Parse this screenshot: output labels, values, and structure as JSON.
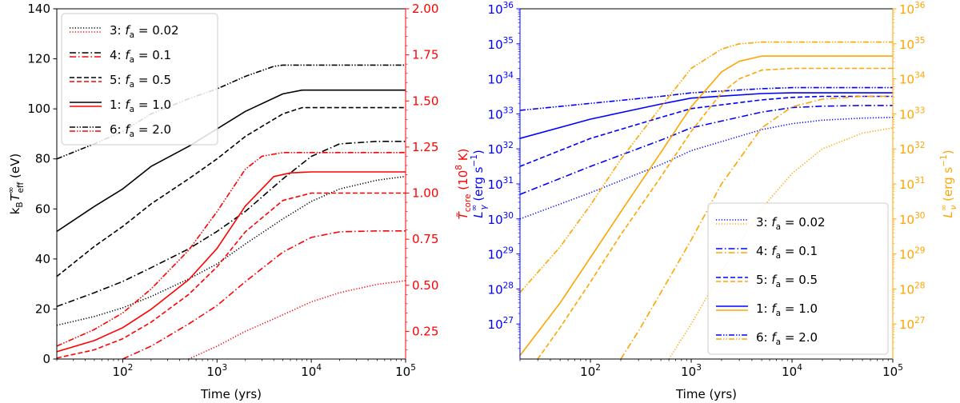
{
  "chart_data": [
    {
      "type": "line",
      "x_scale": "log",
      "xlim": [
        20,
        100000
      ],
      "xlabel": "Time (yrs)",
      "x_ticks": [
        100,
        1000,
        10000,
        100000
      ],
      "x_tick_labels": [
        "10",
        "10",
        "10",
        "10"
      ],
      "x_tick_exponents": [
        "2",
        "3",
        "4",
        "5"
      ],
      "ylabel_left": {
        "base": "k",
        "base_sub": "B",
        "main": "T",
        "main_sup": "∞",
        "main_sub": "eff",
        "unit": " (eV)"
      },
      "ylim_left": [
        0,
        140
      ],
      "y_ticks_left": [
        0,
        20,
        40,
        60,
        80,
        100,
        120,
        140
      ],
      "ylabel_right": {
        "main": "T̃",
        "main_sub": "core",
        "unit": " (10",
        "unit_sup": "8",
        "unit_end": " K)"
      },
      "ylim_right": [
        0.1,
        2.0
      ],
      "y_ticks_right": [
        0.25,
        0.5,
        0.75,
        1.0,
        1.25,
        1.5,
        1.75,
        2.0
      ],
      "y_tick_labels_right": [
        "0.25",
        "0.50",
        "0.75",
        "1.00",
        "1.25",
        "1.50",
        "1.75",
        "2.00"
      ],
      "colors": {
        "left_axis": "#000000",
        "right_axis": "#ff0000"
      },
      "legend": {
        "position": "top-left",
        "entries": [
          {
            "id": "3",
            "label": "3: ",
            "f_symbol": "f",
            "f_sub": "a",
            "value": " = 0.02",
            "dash": "dotted"
          },
          {
            "id": "4",
            "label": "4: ",
            "f_symbol": "f",
            "f_sub": "a",
            "value": " = 0.1",
            "dash": "dashdot"
          },
          {
            "id": "5",
            "label": "5: ",
            "f_symbol": "f",
            "f_sub": "a",
            "value": " = 0.5",
            "dash": "dashed"
          },
          {
            "id": "1",
            "label": "1: ",
            "f_symbol": "f",
            "f_sub": "a",
            "value": " = 1.0",
            "dash": "solid"
          },
          {
            "id": "6",
            "label": "6: ",
            "f_symbol": "f",
            "f_sub": "a",
            "value": " = 2.0",
            "dash": "dashdotdot"
          }
        ]
      },
      "series": [
        {
          "id": "3",
          "axis": "left",
          "color": "#000000",
          "dash": "dotted",
          "x": [
            20,
            50,
            100,
            200,
            500,
            1000,
            2000,
            5000,
            10000,
            20000,
            50000,
            100000
          ],
          "y": [
            13.5,
            17,
            20.5,
            25,
            32,
            38,
            46,
            56,
            63,
            68,
            71.5,
            73
          ]
        },
        {
          "id": "4",
          "axis": "left",
          "color": "#000000",
          "dash": "dashdot",
          "x": [
            20,
            50,
            100,
            200,
            500,
            1000,
            2000,
            5000,
            10000,
            20000,
            50000,
            100000
          ],
          "y": [
            21,
            26.5,
            31,
            36.5,
            44,
            51,
            59,
            72,
            81,
            86,
            87,
            87
          ]
        },
        {
          "id": "5",
          "axis": "left",
          "color": "#000000",
          "dash": "dashed",
          "x": [
            20,
            50,
            100,
            200,
            500,
            1000,
            2000,
            5000,
            8000,
            20000,
            100000
          ],
          "y": [
            33,
            45,
            53,
            62,
            72,
            80,
            89,
            98,
            100.5,
            100.5,
            100.5
          ]
        },
        {
          "id": "1",
          "axis": "left",
          "color": "#000000",
          "dash": "solid",
          "x": [
            20,
            50,
            100,
            200,
            500,
            1000,
            2000,
            5000,
            8000,
            20000,
            100000
          ],
          "y": [
            51,
            61,
            68,
            77,
            85,
            92,
            99,
            106,
            107.5,
            107.5,
            107.5
          ]
        },
        {
          "id": "6",
          "axis": "left",
          "color": "#000000",
          "dash": "dashdotdot",
          "x": [
            20,
            50,
            100,
            200,
            500,
            1000,
            2000,
            4000,
            5000,
            20000,
            100000
          ],
          "y": [
            80,
            86,
            91,
            98,
            104,
            108,
            113,
            117,
            117.5,
            117.5,
            117.5
          ]
        },
        {
          "id": "3",
          "axis": "right",
          "color": "#ff0000",
          "dash": "dotted",
          "x": [
            500,
            1000,
            2000,
            5000,
            10000,
            20000,
            50000,
            100000
          ],
          "y": [
            0.1,
            0.17,
            0.25,
            0.34,
            0.41,
            0.46,
            0.505,
            0.525
          ]
        },
        {
          "id": "4",
          "axis": "right",
          "color": "#ff0000",
          "dash": "dashdot",
          "x": [
            100,
            200,
            500,
            1000,
            2000,
            5000,
            10000,
            20000,
            50000,
            100000
          ],
          "y": [
            0.1,
            0.17,
            0.29,
            0.39,
            0.52,
            0.68,
            0.76,
            0.79,
            0.795,
            0.795
          ]
        },
        {
          "id": "5",
          "axis": "right",
          "color": "#ff0000",
          "dash": "dashed",
          "x": [
            20,
            50,
            100,
            200,
            500,
            1000,
            2000,
            5000,
            10000,
            20000,
            100000
          ],
          "y": [
            0.105,
            0.15,
            0.21,
            0.3,
            0.45,
            0.6,
            0.79,
            0.96,
            1.0,
            1.0,
            1.0
          ]
        },
        {
          "id": "1",
          "axis": "right",
          "color": "#ff0000",
          "dash": "solid",
          "x": [
            20,
            50,
            100,
            200,
            500,
            1000,
            2000,
            4000,
            6000,
            10000,
            100000
          ],
          "y": [
            0.14,
            0.2,
            0.27,
            0.37,
            0.53,
            0.7,
            0.93,
            1.09,
            1.11,
            1.115,
            1.115
          ]
        },
        {
          "id": "6",
          "axis": "right",
          "color": "#ff0000",
          "dash": "dashdotdot",
          "x": [
            20,
            50,
            100,
            200,
            500,
            1000,
            2000,
            3000,
            5000,
            100000
          ],
          "y": [
            0.17,
            0.26,
            0.35,
            0.48,
            0.69,
            0.9,
            1.13,
            1.2,
            1.22,
            1.22
          ]
        }
      ]
    },
    {
      "type": "line",
      "x_scale": "log",
      "xlim": [
        20,
        100000
      ],
      "xlabel": "Time (yrs)",
      "x_ticks": [
        100,
        1000,
        10000,
        100000
      ],
      "x_tick_labels": [
        "10",
        "10",
        "10",
        "10"
      ],
      "x_tick_exponents": [
        "2",
        "3",
        "4",
        "5"
      ],
      "y_scale": "log",
      "ylabel_left": {
        "main": "L",
        "main_sup": "∞",
        "main_sub": "γ",
        "unit": " (erg s",
        "unit_sup": "−1",
        "unit_end": ")"
      },
      "ylim_left_exp": [
        26,
        36
      ],
      "y_ticks_left_exp": [
        27,
        28,
        29,
        30,
        31,
        32,
        33,
        34,
        35,
        36
      ],
      "ylabel_right": {
        "main": "L",
        "main_sup": "∞",
        "main_sub": "ν",
        "unit": " (erg s",
        "unit_sup": "−1",
        "unit_end": ")"
      },
      "ylim_right_exp": [
        26,
        36
      ],
      "y_ticks_right_exp": [
        27,
        28,
        29,
        30,
        31,
        32,
        33,
        34,
        35,
        36
      ],
      "y_tick_base": "10",
      "colors": {
        "left_axis": "#0000ff",
        "right_axis": "#ffa500"
      },
      "legend": {
        "position": "bottom-right",
        "entries": [
          {
            "id": "3",
            "label": "3: ",
            "f_symbol": "f",
            "f_sub": "a",
            "value": " = 0.02",
            "dash": "dotted"
          },
          {
            "id": "4",
            "label": "4: ",
            "f_symbol": "f",
            "f_sub": "a",
            "value": " = 0.1",
            "dash": "dashdot"
          },
          {
            "id": "5",
            "label": "5: ",
            "f_symbol": "f",
            "f_sub": "a",
            "value": " = 0.5",
            "dash": "dashed"
          },
          {
            "id": "1",
            "label": "1: ",
            "f_symbol": "f",
            "f_sub": "a",
            "value": " = 1.0",
            "dash": "solid"
          },
          {
            "id": "6",
            "label": "6: ",
            "f_symbol": "f",
            "f_sub": "a",
            "value": " = 2.0",
            "dash": "dashdotdot"
          }
        ]
      },
      "series": [
        {
          "id": "3",
          "axis": "left",
          "color": "#0000ff",
          "dash": "dotted",
          "x": [
            20,
            100,
            500,
            1000,
            5000,
            10000,
            20000,
            50000,
            100000
          ],
          "log_y": [
            30.0,
            30.75,
            31.55,
            31.95,
            32.55,
            32.72,
            32.82,
            32.88,
            32.9
          ]
        },
        {
          "id": "4",
          "axis": "left",
          "color": "#0000ff",
          "dash": "dashdot",
          "x": [
            20,
            100,
            500,
            1000,
            5000,
            10000,
            20000,
            50000,
            100000
          ],
          "log_y": [
            30.7,
            31.5,
            32.25,
            32.6,
            33.05,
            33.18,
            33.22,
            33.24,
            33.24
          ]
        },
        {
          "id": "5",
          "axis": "left",
          "color": "#0000ff",
          "dash": "dashed",
          "x": [
            20,
            100,
            500,
            1000,
            5000,
            10000,
            20000,
            50000,
            100000
          ],
          "log_y": [
            31.5,
            32.3,
            32.9,
            33.15,
            33.4,
            33.47,
            33.5,
            33.5,
            33.5
          ]
        },
        {
          "id": "1",
          "axis": "left",
          "color": "#0000ff",
          "dash": "solid",
          "x": [
            20,
            100,
            500,
            1000,
            5000,
            10000,
            20000,
            50000,
            100000
          ],
          "log_y": [
            32.3,
            32.85,
            33.28,
            33.45,
            33.58,
            33.6,
            33.6,
            33.6,
            33.6
          ]
        },
        {
          "id": "6",
          "axis": "left",
          "color": "#0000ff",
          "dash": "dashdotdot",
          "x": [
            20,
            100,
            500,
            1000,
            5000,
            10000,
            20000,
            50000,
            100000
          ],
          "log_y": [
            33.1,
            33.3,
            33.5,
            33.6,
            33.72,
            33.75,
            33.75,
            33.75,
            33.75
          ]
        },
        {
          "id": "3",
          "axis": "right",
          "color": "#ffa500",
          "dash": "dotted",
          "x": [
            600,
            1000,
            2000,
            5000,
            10000,
            20000,
            50000,
            100000
          ],
          "log_y": [
            26.0,
            27.0,
            28.5,
            30.3,
            31.3,
            32.0,
            32.45,
            32.6
          ]
        },
        {
          "id": "4",
          "axis": "right",
          "color": "#ffa500",
          "dash": "dashdot",
          "x": [
            200,
            300,
            500,
            1000,
            2000,
            5000,
            10000,
            20000,
            50000,
            100000
          ],
          "log_y": [
            26.0,
            26.8,
            27.9,
            29.4,
            31.0,
            32.6,
            33.2,
            33.42,
            33.5,
            33.5
          ]
        },
        {
          "id": "5",
          "axis": "right",
          "color": "#ffa500",
          "dash": "dashed",
          "x": [
            30,
            50,
            100,
            200,
            500,
            1000,
            2000,
            3000,
            5000,
            10000,
            20000,
            100000
          ],
          "log_y": [
            26.0,
            26.9,
            28.2,
            29.55,
            31.2,
            32.5,
            33.6,
            34.0,
            34.25,
            34.3,
            34.3,
            34.3
          ]
        },
        {
          "id": "1",
          "axis": "right",
          "color": "#ffa500",
          "dash": "solid",
          "x": [
            20,
            50,
            100,
            200,
            500,
            1000,
            2000,
            3000,
            5000,
            10000,
            100000
          ],
          "log_y": [
            26.1,
            27.6,
            28.9,
            30.2,
            31.9,
            33.2,
            34.2,
            34.5,
            34.65,
            34.65,
            34.65
          ]
        },
        {
          "id": "6",
          "axis": "right",
          "color": "#ffa500",
          "dash": "dashdotdot",
          "x": [
            20,
            50,
            100,
            200,
            500,
            1000,
            2000,
            3000,
            5000,
            10000,
            100000
          ],
          "log_y": [
            27.9,
            29.2,
            30.4,
            31.7,
            33.2,
            34.3,
            34.85,
            35.0,
            35.05,
            35.05,
            35.05
          ]
        }
      ]
    }
  ]
}
